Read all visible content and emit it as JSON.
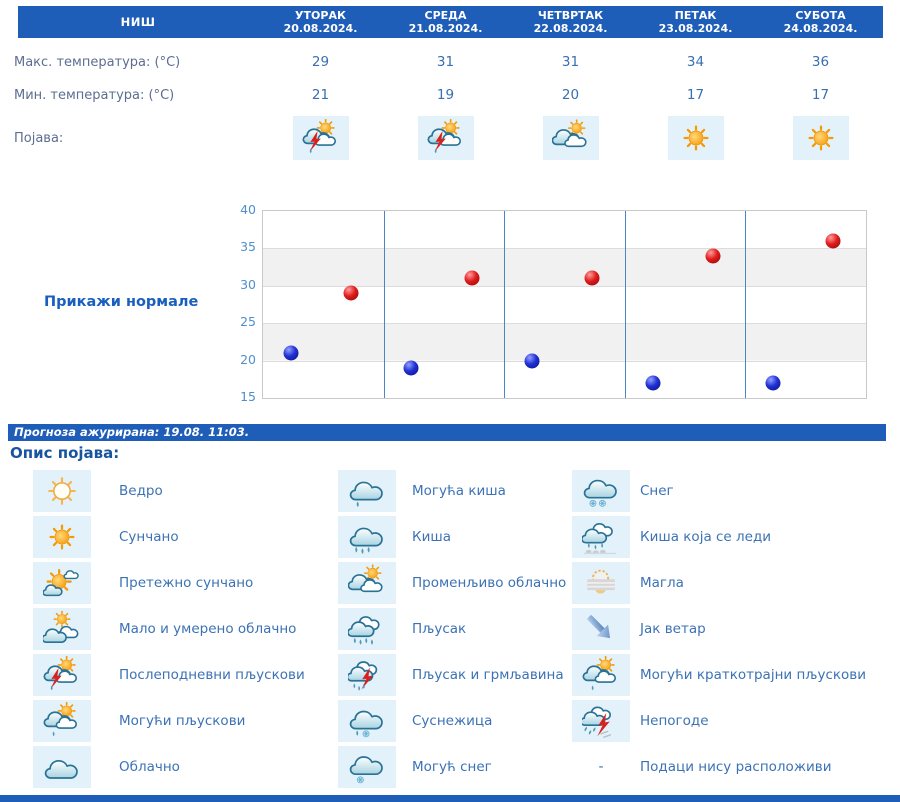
{
  "page": {
    "accent_blue": "#1e5db8",
    "label_color": "#5d6e91",
    "value_color": "#3a6fb0",
    "icon_bg": "#e3f1fb"
  },
  "forecast": {
    "city": "НИШ",
    "days": [
      {
        "name": "УТОРАК",
        "date": "20.08.2024."
      },
      {
        "name": "СРЕДА",
        "date": "21.08.2024."
      },
      {
        "name": "ЧЕТВРТАК",
        "date": "22.08.2024."
      },
      {
        "name": "ПЕТАК",
        "date": "23.08.2024."
      },
      {
        "name": "СУБОТА",
        "date": "24.08.2024."
      }
    ],
    "max_temp": {
      "label": "Макс. температура: (°C)",
      "values": [
        "29",
        "31",
        "31",
        "34",
        "36"
      ]
    },
    "min_temp": {
      "label": "Мин. температура: (°C)",
      "values": [
        "21",
        "19",
        "20",
        "17",
        "17"
      ]
    },
    "pojava": {
      "label": "Појава:",
      "icons": [
        "cloud-sun-lightning",
        "cloud-sun-lightning",
        "clouds-sun",
        "sun",
        "sun"
      ]
    }
  },
  "chart": {
    "show_normals_label": "Прикажи нормале"
  },
  "chart_data": {
    "type": "scatter",
    "categories": [
      "20.08.2024.",
      "21.08.2024.",
      "22.08.2024.",
      "23.08.2024.",
      "24.08.2024."
    ],
    "series": [
      {
        "name": "Максимална температура",
        "color": "#cc1313",
        "values": [
          29,
          31,
          31,
          34,
          36
        ]
      },
      {
        "name": "Минимална температура",
        "color": "#1c2bd0",
        "values": [
          21,
          19,
          20,
          17,
          17
        ]
      }
    ],
    "ylim": [
      15,
      40
    ],
    "yticks": [
      15,
      20,
      25,
      30,
      35,
      40
    ],
    "grid": "alternating horizontal bands, blue vertical day separators",
    "legend_position": "none"
  },
  "updated_bar": {
    "text": "Прогноза ажурирана:  19.08. 11:03."
  },
  "legend": {
    "title": "Опис појава:",
    "columns": [
      [
        {
          "icon": "sun-outline",
          "label": "Ведро"
        },
        {
          "icon": "sun",
          "label": "Сунчано"
        },
        {
          "icon": "sun-cloud",
          "label": "Претежно сунчано"
        },
        {
          "icon": "clouds-sun-small",
          "label": "Мало и умерено облачно"
        },
        {
          "icon": "cloud-sun-lightning",
          "label": "Послеподневни пљускови"
        },
        {
          "icon": "cloud-sun-drop",
          "label": "Могући пљускови"
        },
        {
          "icon": "cloud",
          "label": "Облачно"
        }
      ],
      [
        {
          "icon": "cloud-drop",
          "label": "Могућа киша"
        },
        {
          "icon": "cloud-rain",
          "label": "Киша"
        },
        {
          "icon": "clouds-sun",
          "label": "Променљиво облачно"
        },
        {
          "icon": "cloud-heavy-rain",
          "label": "Пљусак"
        },
        {
          "icon": "cloud-rain-lightning",
          "label": "Пљусак и грмљавина"
        },
        {
          "icon": "cloud-sleet",
          "label": "Суснежица"
        },
        {
          "icon": "cloud-snow-one",
          "label": "Могућ снег"
        }
      ],
      [
        {
          "icon": "cloud-snow-two",
          "label": "Снег"
        },
        {
          "icon": "cloud-freezing-rain",
          "label": "Киша која се леди"
        },
        {
          "icon": "fog",
          "label": "Магла"
        },
        {
          "icon": "wind",
          "label": "Јак ветар"
        },
        {
          "icon": "cloud-sun-drop",
          "label": "Могући краткотрајни пљускови"
        },
        {
          "icon": "storm",
          "label": "Непогоде"
        },
        {
          "icon": "dash",
          "symbol": "-",
          "label": "Подаци нису расположиви"
        }
      ]
    ]
  }
}
